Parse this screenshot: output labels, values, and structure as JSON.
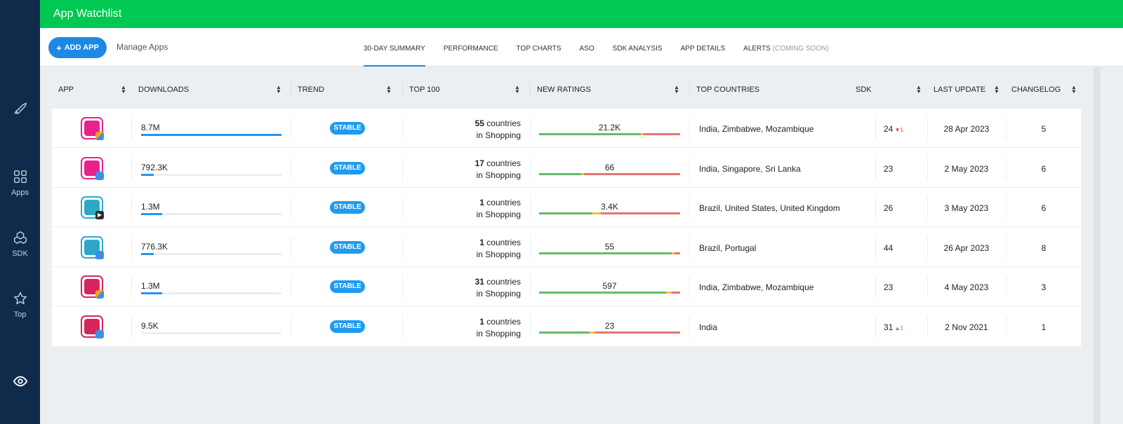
{
  "header": {
    "title": "App Watchlist"
  },
  "sidebar": {
    "items": [
      {
        "icon": "rocket-icon",
        "label": ""
      },
      {
        "icon": "apps-grid-icon",
        "label": "Apps"
      },
      {
        "icon": "cubes-icon",
        "label": "SDK"
      },
      {
        "icon": "star-icon",
        "label": "Top"
      },
      {
        "icon": "eye-icon",
        "label": ""
      }
    ]
  },
  "toolbar": {
    "add_label": "ADD APP",
    "manage_label": "Manage Apps"
  },
  "tabs": [
    {
      "label": "30-DAY SUMMARY",
      "suffix": "",
      "active": true
    },
    {
      "label": "PERFORMANCE",
      "suffix": ""
    },
    {
      "label": "TOP CHARTS",
      "suffix": ""
    },
    {
      "label": "ASO",
      "suffix": ""
    },
    {
      "label": "SDK ANALYSIS",
      "suffix": ""
    },
    {
      "label": "APP DETAILS",
      "suffix": ""
    },
    {
      "label": "ALERTS",
      "suffix": "(COMING SOON)"
    }
  ],
  "columns": {
    "app": "APP",
    "downloads": "DOWNLOADS",
    "trend": "TREND",
    "top100": "TOP 100",
    "ratings": "NEW RATINGS",
    "countries": "TOP COUNTRIES",
    "sdk": "SDK",
    "last_update": "LAST UPDATE",
    "changelog": "CHANGELOG"
  },
  "rows": [
    {
      "icon_color": "#e8228a",
      "store": "mixed",
      "downloads": "8.7M",
      "downloads_fraction": 1.0,
      "trend": "STABLE",
      "top100_count": "55",
      "top100_suffix": "countries",
      "top100_category": "in Shopping",
      "ratings": "21.2K",
      "rating_split": [
        0.72,
        0.02,
        0.26
      ],
      "countries": "India, Zimbabwe, Mozambique",
      "sdk": "24",
      "sdk_change": "1",
      "sdk_dir": "down",
      "last_update": "28 Apr 2023",
      "changelog": "5"
    },
    {
      "icon_color": "#e8228a",
      "store": "ios",
      "downloads": "792.3K",
      "downloads_fraction": 0.09,
      "trend": "STABLE",
      "top100_count": "17",
      "top100_suffix": "countries",
      "top100_category": "in Shopping",
      "ratings": "66",
      "rating_split": [
        0.3,
        0.02,
        0.68
      ],
      "countries": "India, Singapore, Sri Lanka",
      "sdk": "23",
      "sdk_change": "",
      "sdk_dir": "",
      "last_update": "2 May 2023",
      "changelog": "6"
    },
    {
      "icon_color": "#2fa8c8",
      "store": "gp",
      "downloads": "1.3M",
      "downloads_fraction": 0.15,
      "trend": "STABLE",
      "top100_count": "1",
      "top100_suffix": "countries",
      "top100_category": "in Shopping",
      "ratings": "3.4K",
      "rating_split": [
        0.38,
        0.06,
        0.56
      ],
      "countries": "Brazil, United States, United Kingdom",
      "sdk": "26",
      "sdk_change": "",
      "sdk_dir": "",
      "last_update": "3 May 2023",
      "changelog": "6"
    },
    {
      "icon_color": "#2fa8c8",
      "store": "ios",
      "downloads": "776.3K",
      "downloads_fraction": 0.09,
      "trend": "STABLE",
      "top100_count": "1",
      "top100_suffix": "countries",
      "top100_category": "in Shopping",
      "ratings": "55",
      "rating_split": [
        0.94,
        0.02,
        0.04
      ],
      "countries": "Brazil, Portugal",
      "sdk": "44",
      "sdk_change": "",
      "sdk_dir": "",
      "last_update": "26 Apr 2023",
      "changelog": "8"
    },
    {
      "icon_color": "#d6245d",
      "store": "mixed",
      "downloads": "1.3M",
      "downloads_fraction": 0.15,
      "trend": "STABLE",
      "top100_count": "31",
      "top100_suffix": "countries",
      "top100_category": "in Shopping",
      "ratings": "597",
      "rating_split": [
        0.9,
        0.04,
        0.06
      ],
      "countries": "India, Zimbabwe, Mozambique",
      "sdk": "23",
      "sdk_change": "",
      "sdk_dir": "",
      "last_update": "4 May 2023",
      "changelog": "3"
    },
    {
      "icon_color": "#d6245d",
      "store": "ios",
      "downloads": "9.5K",
      "downloads_fraction": 0.0,
      "trend": "STABLE",
      "top100_count": "1",
      "top100_suffix": "countries",
      "top100_category": "in Shopping",
      "ratings": "23",
      "rating_split": [
        0.36,
        0.04,
        0.6
      ],
      "countries": "India",
      "sdk": "31",
      "sdk_change": "1",
      "sdk_dir": "up",
      "last_update": "2 Nov 2021",
      "changelog": "1"
    }
  ],
  "colors": {
    "header_green": "#00c853",
    "sidebar_navy": "#0f2a4a",
    "accent_blue": "#1e88e5",
    "rating_good": "#66bb6a",
    "rating_mid": "#fbc02d",
    "rating_bad": "#e57373"
  }
}
